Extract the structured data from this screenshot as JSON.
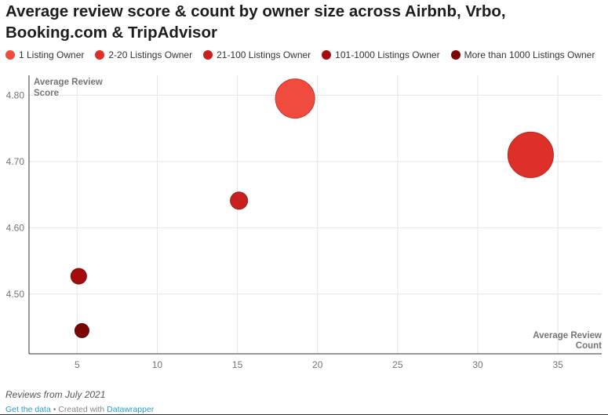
{
  "title": "Average review score & count by owner size across Airbnb, Vrbo, Booking.com & TripAdvisor",
  "note": "Reviews from July 2021",
  "footer": {
    "get_data": "Get the data",
    "separator": " • Created with ",
    "tool": "Datawrapper"
  },
  "chart_data": {
    "type": "scatter",
    "title": "Average review score & count by owner size across Airbnb, Vrbo, Booking.com & TripAdvisor",
    "xlabel": "Average Review Count",
    "ylabel": "Average Review Score",
    "xlabel_lines": [
      "Average Review",
      "Count"
    ],
    "ylabel_lines": [
      "Average Review",
      "Score"
    ],
    "xlim": [
      2,
      37
    ],
    "ylim": [
      4.41,
      4.83
    ],
    "x_ticks": [
      5,
      10,
      15,
      20,
      25,
      30,
      35
    ],
    "x_tick_labels": [
      "5",
      "10",
      "15",
      "20",
      "25",
      "30",
      "35"
    ],
    "y_ticks": [
      4.5,
      4.6,
      4.7,
      4.8
    ],
    "y_tick_labels": [
      "4.50",
      "4.60",
      "4.70",
      "4.80"
    ],
    "grid": true,
    "legend_position": "top",
    "series": [
      {
        "name": "1 Listing Owner",
        "color": "#ef4b3f",
        "stroke": "#c9352b",
        "x": 18.6,
        "y": 4.795,
        "size": 25
      },
      {
        "name": "2-20 Listings Owner",
        "color": "#dc3029",
        "stroke": "#b82520",
        "x": 33.3,
        "y": 4.71,
        "size": 29
      },
      {
        "name": "21-100 Listings Owner",
        "color": "#c8201e",
        "stroke": "#a11816",
        "x": 15.1,
        "y": 4.641,
        "size": 11
      },
      {
        "name": "101-1000 Listings Owner",
        "color": "#a50d0d",
        "stroke": "#7e0909",
        "x": 5.1,
        "y": 4.527,
        "size": 10
      },
      {
        "name": "More than 1000 Listings Owner",
        "color": "#7a0605",
        "stroke": "#5a0404",
        "x": 5.3,
        "y": 4.445,
        "size": 9
      }
    ]
  }
}
